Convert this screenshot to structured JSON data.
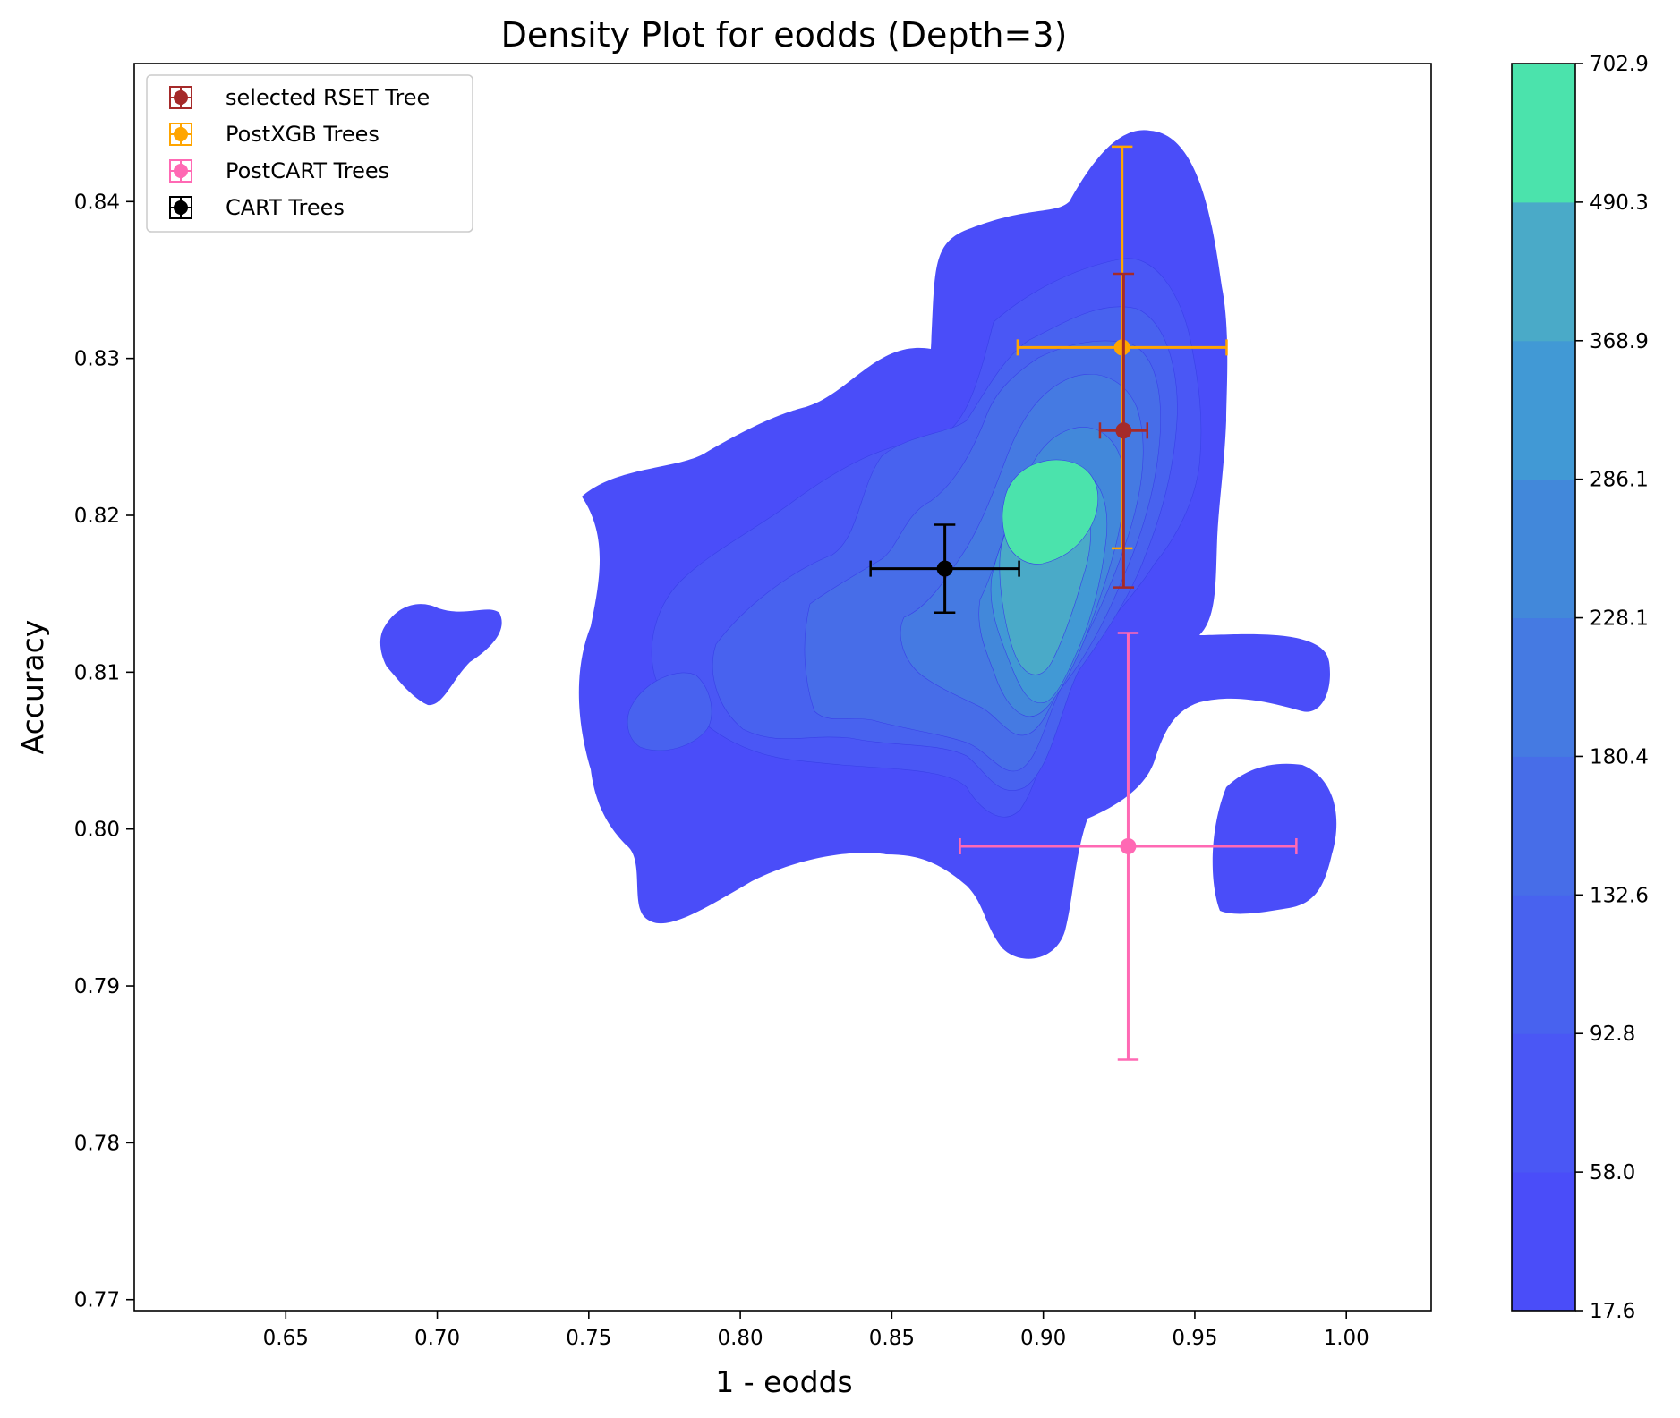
{
  "chart_data": {
    "type": "density",
    "title": "Density Plot for eodds (Depth=3)",
    "xlabel": "1 - eodds",
    "ylabel": "Accuracy",
    "xlim": [
      0.6,
      1.028
    ],
    "ylim": [
      0.7693,
      0.8488
    ],
    "xticks": [
      0.65,
      0.7,
      0.75,
      0.8,
      0.85,
      0.9,
      0.95,
      1.0
    ],
    "xtick_labels": [
      "0.65",
      "0.70",
      "0.75",
      "0.80",
      "0.85",
      "0.90",
      "0.95",
      "1.00"
    ],
    "yticks": [
      0.77,
      0.78,
      0.79,
      0.8,
      0.81,
      0.82,
      0.83,
      0.84
    ],
    "ytick_labels": [
      "0.77",
      "0.78",
      "0.79",
      "0.80",
      "0.81",
      "0.82",
      "0.83",
      "0.84"
    ],
    "grid": false,
    "legend_position": "upper-left",
    "series": [
      {
        "name": "selected RSET Tree",
        "color": "#a52a2a",
        "x": 0.9265,
        "y": 0.8254,
        "xerr": 0.0078,
        "yerr": 0.01
      },
      {
        "name": "PostXGB Trees",
        "color": "#ffa500",
        "x": 0.926,
        "y": 0.8307,
        "xerr": 0.0345,
        "yerr": 0.0128
      },
      {
        "name": "PostCART Trees",
        "color": "#ff69b4",
        "x": 0.928,
        "y": 0.7989,
        "xerr": 0.0555,
        "yerr": 0.0136
      },
      {
        "name": "CART Trees",
        "color": "#000000",
        "x": 0.8675,
        "y": 0.8166,
        "xerr": 0.0245,
        "yerr": 0.0028
      }
    ],
    "density_colors": [
      "#4a4df9",
      "#4a57f5",
      "#4862ef",
      "#476de8",
      "#457ae2",
      "#4288da",
      "#4199d5",
      "#4aaac8",
      "#4be3ac"
    ],
    "colorbar": {
      "levels": [
        17.6,
        58.0,
        92.8,
        132.6,
        180.4,
        228.1,
        286.1,
        368.9,
        490.3,
        702.9
      ],
      "labels": [
        "17.6",
        "58.0",
        "92.8",
        "132.6",
        "180.4",
        "228.1",
        "286.1",
        "368.9",
        "490.3",
        "702.9"
      ]
    }
  }
}
